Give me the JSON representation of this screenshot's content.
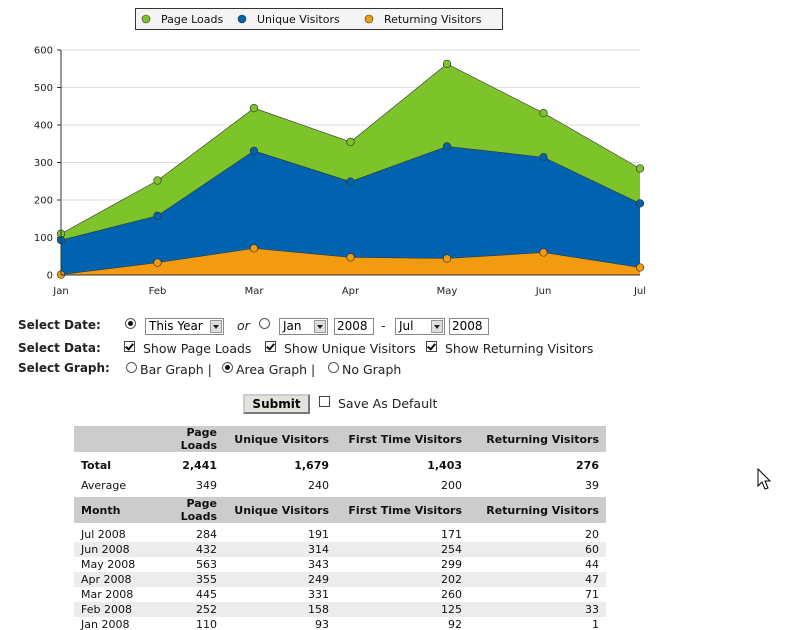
{
  "chart_data": {
    "type": "area",
    "categories": [
      "Jan",
      "Feb",
      "Mar",
      "Apr",
      "May",
      "Jun",
      "Jul"
    ],
    "series": [
      {
        "name": "Page Loads",
        "color": "#7dc42a",
        "values": [
          110,
          252,
          445,
          355,
          563,
          432,
          284
        ]
      },
      {
        "name": "Unique Visitors",
        "color": "#0063b0",
        "values": [
          93,
          158,
          331,
          249,
          343,
          314,
          191
        ]
      },
      {
        "name": "Returning Visitors",
        "color": "#f29b11",
        "values": [
          1,
          33,
          71,
          47,
          44,
          60,
          20
        ]
      }
    ],
    "ylim": [
      0,
      600
    ],
    "yticks": [
      0,
      100,
      200,
      300,
      400,
      500,
      600
    ],
    "grid": true,
    "legend": "top"
  },
  "form": {
    "select_date": {
      "label": "Select Date:",
      "period": "This Year",
      "or": "or",
      "from_month": "Jan",
      "from_year": "2008",
      "separator": "-",
      "to_month": "Jul",
      "to_year": "2008"
    },
    "select_data": {
      "label": "Select Data:",
      "options": [
        "Show Page Loads",
        "Show Unique Visitors",
        "Show Returning Visitors"
      ]
    },
    "select_graph": {
      "label": "Select Graph:",
      "options": [
        "Bar Graph |",
        "Area Graph |",
        "No Graph"
      ]
    },
    "submit": "Submit",
    "save_default": "Save As Default"
  },
  "summary_table": {
    "columns": [
      "Page Loads",
      "Unique Visitors",
      "First Time Visitors",
      "Returning Visitors"
    ],
    "rows": [
      [
        "Total",
        "2,441",
        "1,679",
        "1,403",
        "276"
      ],
      [
        "Average",
        "349",
        "240",
        "200",
        "39"
      ]
    ]
  },
  "monthly_table": {
    "columns": [
      "Month",
      "Page Loads",
      "Unique Visitors",
      "First Time Visitors",
      "Returning Visitors"
    ],
    "rows": [
      [
        "Jul 2008",
        "284",
        "191",
        "171",
        "20"
      ],
      [
        "Jun 2008",
        "432",
        "314",
        "254",
        "60"
      ],
      [
        "May 2008",
        "563",
        "343",
        "299",
        "44"
      ],
      [
        "Apr 2008",
        "355",
        "249",
        "202",
        "47"
      ],
      [
        "Mar 2008",
        "445",
        "331",
        "260",
        "71"
      ],
      [
        "Feb 2008",
        "252",
        "158",
        "125",
        "33"
      ],
      [
        "Jan 2008",
        "110",
        "93",
        "92",
        "1"
      ]
    ]
  }
}
